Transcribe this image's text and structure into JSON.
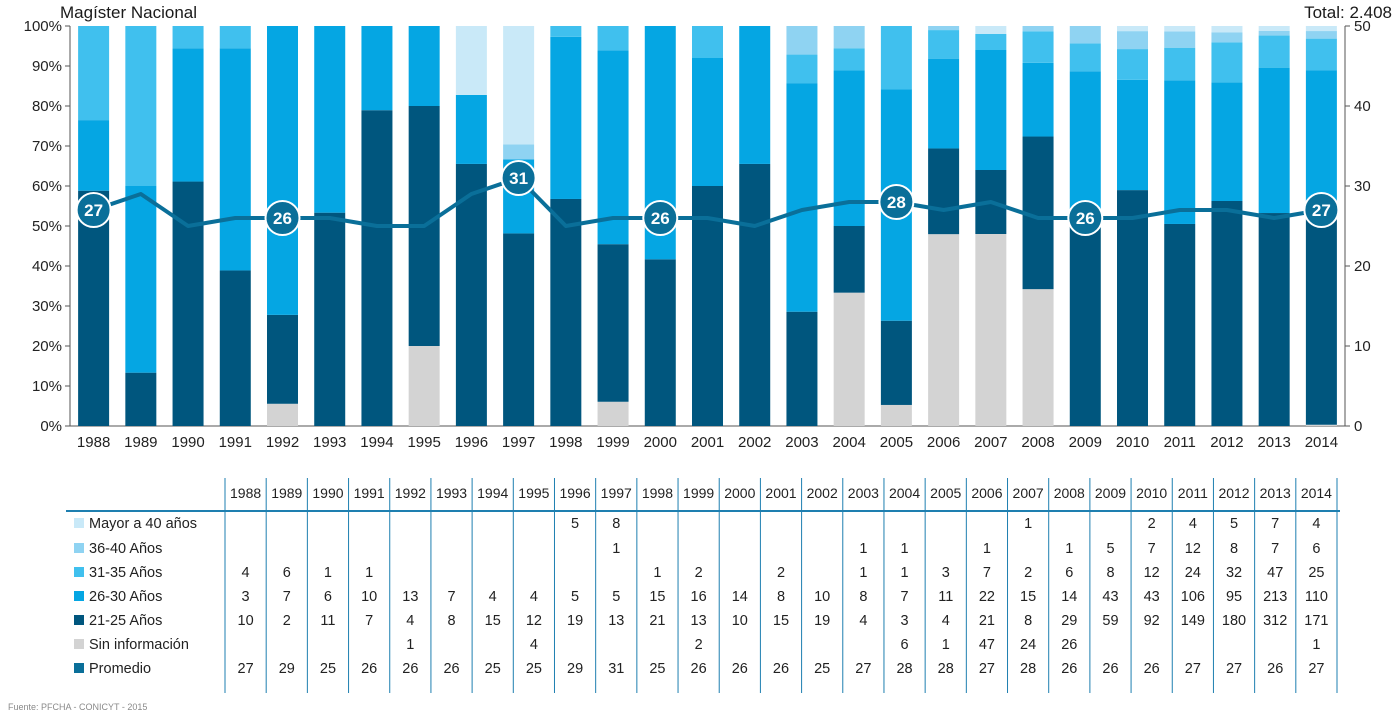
{
  "header": {
    "title": "Magíster Nacional",
    "total": "Total: 2.408"
  },
  "source": "Fuente: PFCHA - CONICYT - 2015",
  "colors": {
    "Mayor a 40 años": "#c9e9f8",
    "36-40 Años": "#8fd3f2",
    "31-35 Años": "#40c0ee",
    "26-30 Años": "#05a6e3",
    "21-25 Años": "#00567e",
    "Sin información": "#d3d3d3",
    "Promedio": "#0a6f99",
    "table_line": "#1e7fb0"
  },
  "chart_data": {
    "type": "bar",
    "stacked": "percent",
    "categories": [
      "1988",
      "1989",
      "1990",
      "1991",
      "1992",
      "1993",
      "1994",
      "1995",
      "1996",
      "1997",
      "1998",
      "1999",
      "2000",
      "2001",
      "2002",
      "2003",
      "2004",
      "2005",
      "2006",
      "2007",
      "2008",
      "2009",
      "2010",
      "2011",
      "2012",
      "2013",
      "2014"
    ],
    "y_left": {
      "ticks": [
        "0%",
        "10%",
        "20%",
        "30%",
        "40%",
        "50%",
        "60%",
        "70%",
        "80%",
        "90%",
        "100%"
      ],
      "range": [
        0,
        100
      ]
    },
    "y_right": {
      "ticks": [
        "0",
        "10",
        "20",
        "30",
        "40",
        "50"
      ],
      "range": [
        0,
        50
      ]
    },
    "series": [
      {
        "name": "Mayor a 40 años",
        "values": [
          null,
          null,
          null,
          null,
          null,
          null,
          null,
          null,
          5,
          8,
          null,
          null,
          null,
          null,
          null,
          null,
          null,
          null,
          null,
          1,
          null,
          null,
          2,
          4,
          5,
          7,
          4
        ]
      },
      {
        "name": "36-40 Años",
        "values": [
          null,
          null,
          null,
          null,
          null,
          null,
          null,
          null,
          null,
          1,
          null,
          null,
          null,
          null,
          null,
          1,
          1,
          null,
          1,
          null,
          1,
          5,
          7,
          12,
          8,
          7,
          6
        ]
      },
      {
        "name": "31-35 Años",
        "values": [
          4,
          6,
          1,
          1,
          null,
          null,
          null,
          null,
          null,
          null,
          1,
          2,
          null,
          2,
          null,
          1,
          1,
          3,
          7,
          2,
          6,
          8,
          12,
          24,
          32,
          47,
          25
        ]
      },
      {
        "name": "26-30 Años",
        "values": [
          3,
          7,
          6,
          10,
          13,
          7,
          4,
          4,
          5,
          5,
          15,
          16,
          14,
          8,
          10,
          8,
          7,
          11,
          22,
          15,
          14,
          43,
          43,
          106,
          95,
          213,
          110
        ]
      },
      {
        "name": "21-25 Años",
        "values": [
          10,
          2,
          11,
          7,
          4,
          8,
          15,
          12,
          19,
          13,
          21,
          13,
          10,
          15,
          19,
          4,
          3,
          4,
          21,
          8,
          29,
          59,
          92,
          149,
          180,
          312,
          171
        ]
      },
      {
        "name": "Sin información",
        "values": [
          null,
          null,
          null,
          null,
          1,
          null,
          null,
          4,
          null,
          null,
          null,
          2,
          null,
          null,
          null,
          null,
          6,
          1,
          47,
          24,
          26,
          null,
          null,
          null,
          null,
          null,
          1
        ]
      }
    ],
    "line": {
      "name": "Promedio",
      "axis": "right",
      "values": [
        27,
        29,
        25,
        26,
        26,
        26,
        25,
        25,
        29,
        31,
        25,
        26,
        26,
        26,
        25,
        27,
        28,
        28,
        27,
        28,
        26,
        26,
        26,
        27,
        27,
        26,
        27
      ]
    },
    "line_labels": [
      {
        "category": "1988",
        "label": "27"
      },
      {
        "category": "1992",
        "label": "26"
      },
      {
        "category": "1997",
        "label": "31"
      },
      {
        "category": "2000",
        "label": "26"
      },
      {
        "category": "2005",
        "label": "28"
      },
      {
        "category": "2009",
        "label": "26"
      },
      {
        "category": "2014",
        "label": "27"
      }
    ],
    "table": {
      "row_labels": [
        "Mayor a 40 años",
        "36-40 Años",
        "31-35 Años",
        "26-30 Años",
        "21-25 Años",
        "Sin información",
        "Promedio"
      ]
    }
  }
}
